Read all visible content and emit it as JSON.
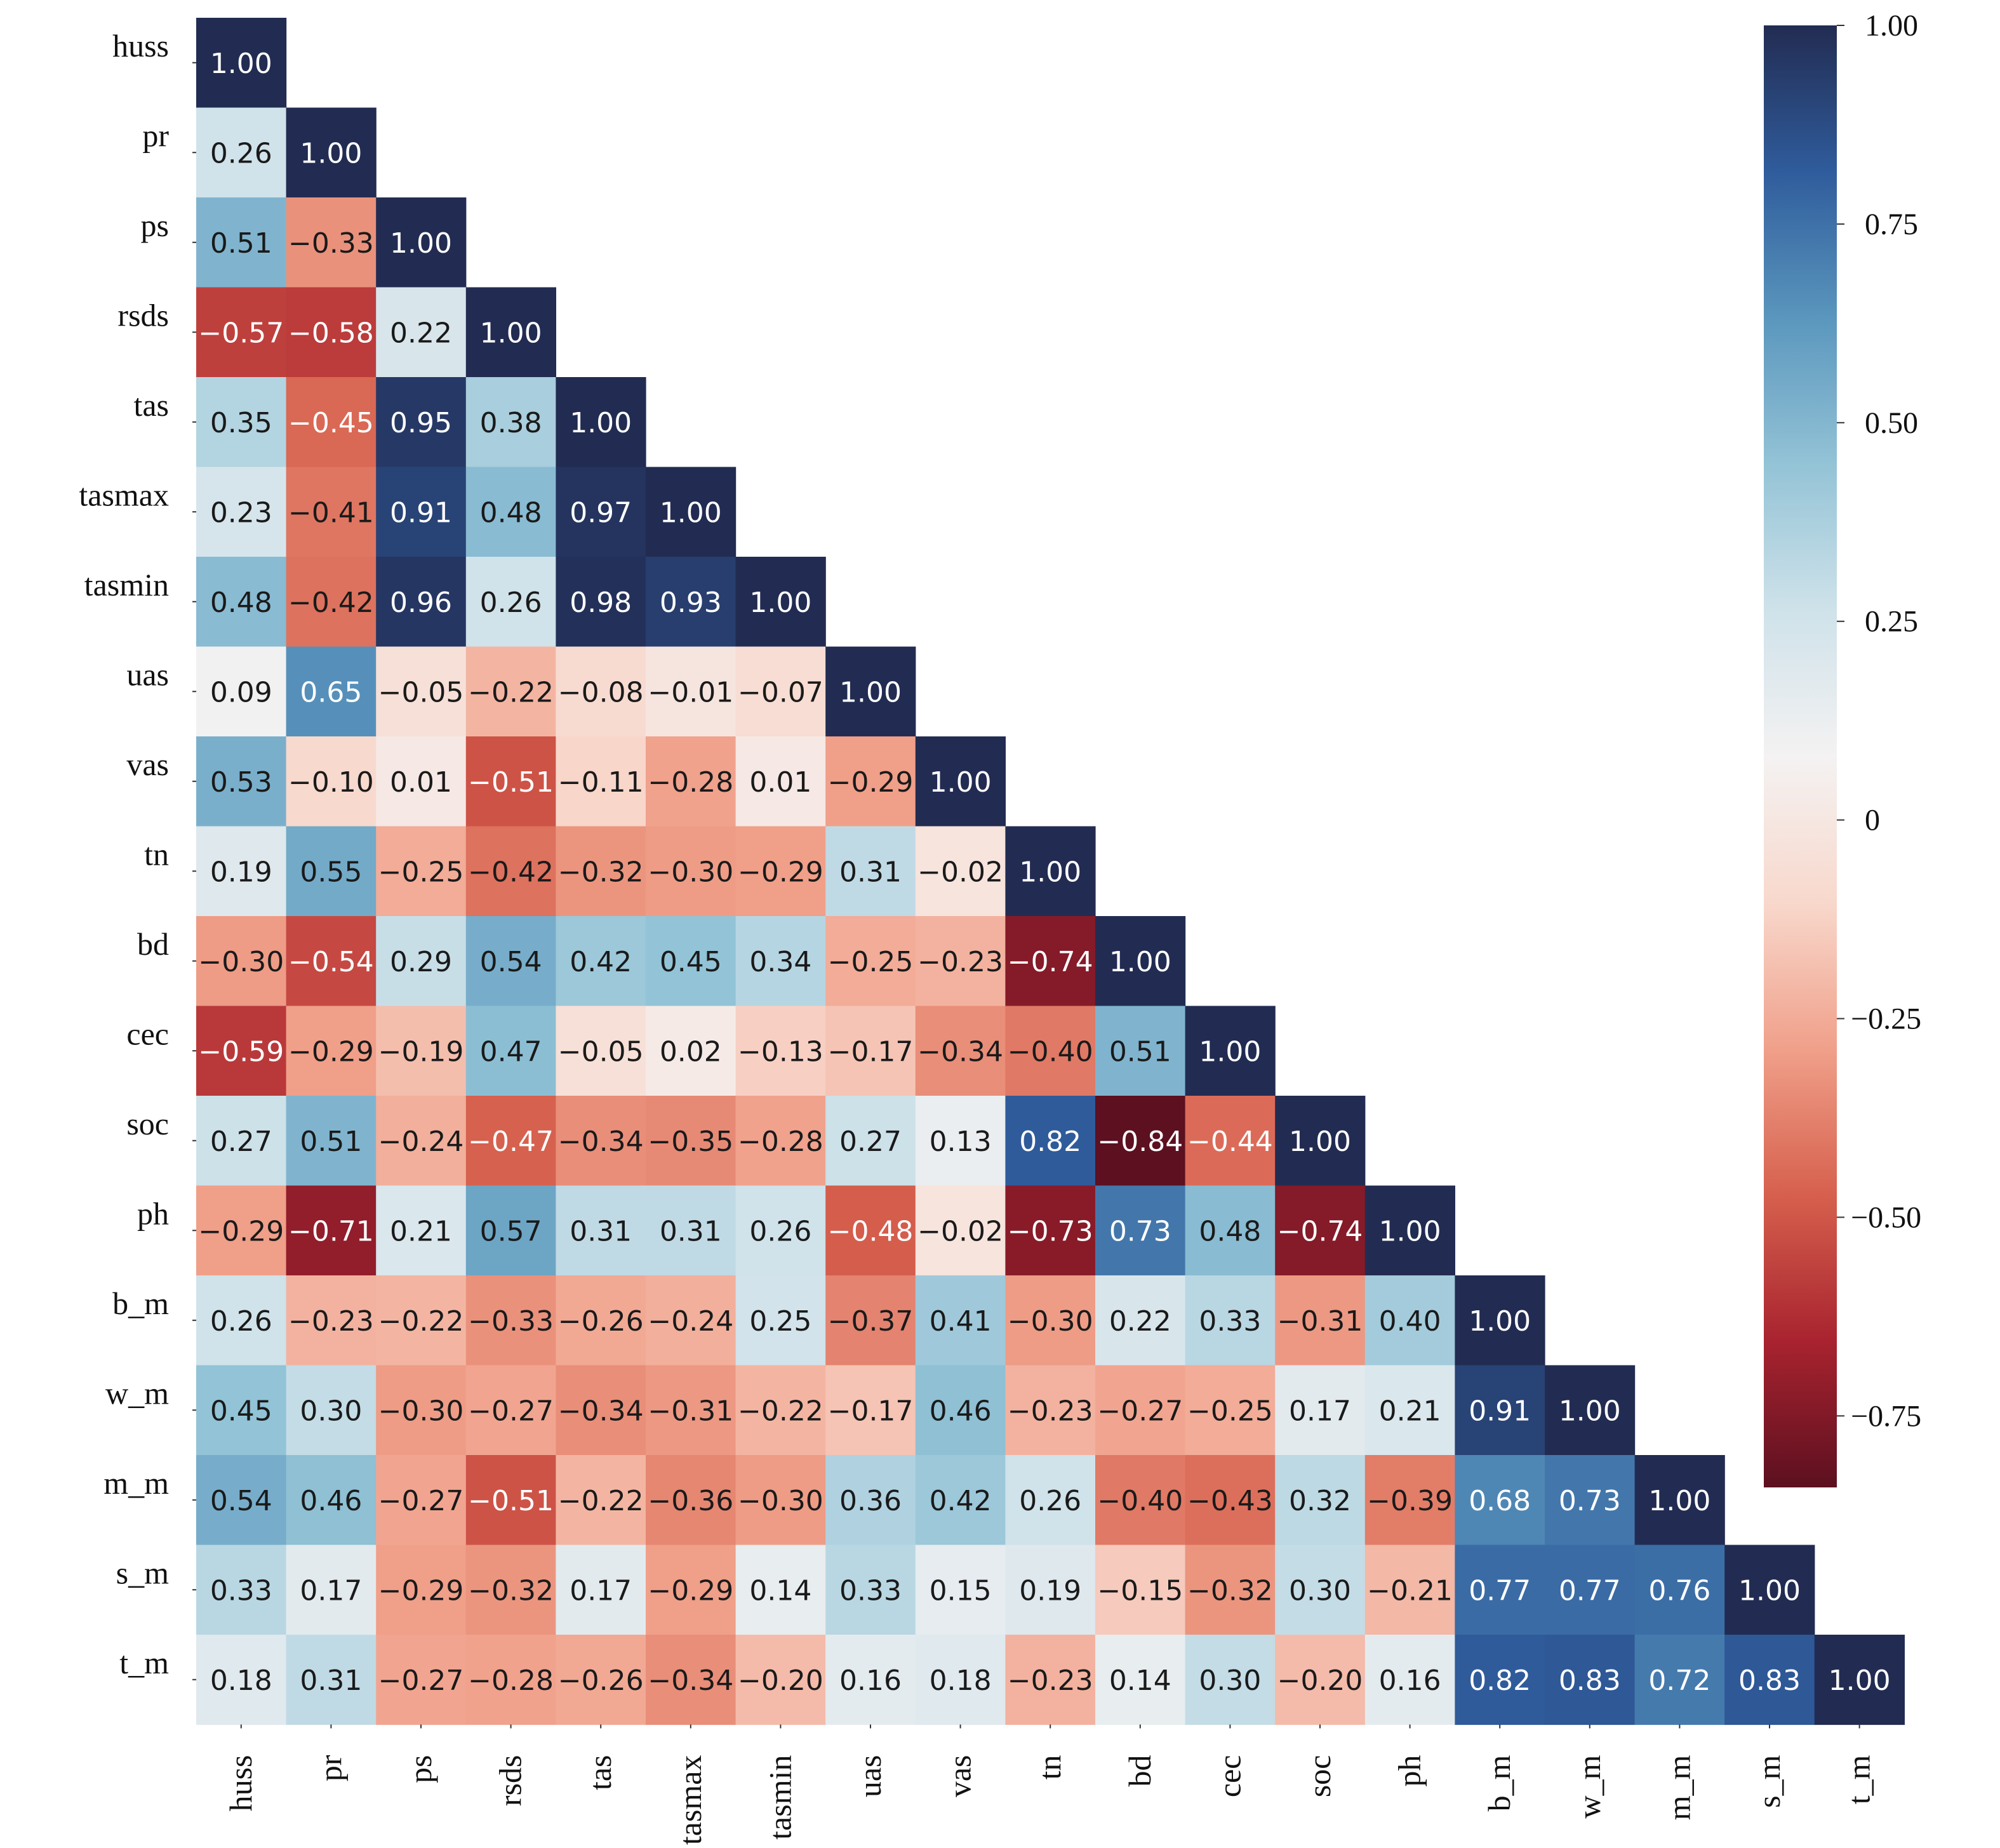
{
  "chart_data": {
    "type": "heatmap",
    "title": "",
    "variables": [
      "huss",
      "pr",
      "ps",
      "rsds",
      "tas",
      "tasmax",
      "tasmin",
      "uas",
      "vas",
      "tn",
      "bd",
      "cec",
      "soc",
      "ph",
      "b_m",
      "w_m",
      "m_m",
      "s_m",
      "t_m"
    ],
    "matrix_lower_triangle": [
      [
        1.0
      ],
      [
        0.26,
        1.0
      ],
      [
        0.51,
        -0.33,
        1.0
      ],
      [
        -0.57,
        -0.58,
        0.22,
        1.0
      ],
      [
        0.35,
        -0.45,
        0.95,
        0.38,
        1.0
      ],
      [
        0.23,
        -0.41,
        0.91,
        0.48,
        0.97,
        1.0
      ],
      [
        0.48,
        -0.42,
        0.96,
        0.26,
        0.98,
        0.93,
        1.0
      ],
      [
        0.09,
        0.65,
        -0.05,
        -0.22,
        -0.08,
        -0.01,
        -0.07,
        1.0
      ],
      [
        0.53,
        -0.1,
        0.01,
        -0.51,
        -0.11,
        -0.28,
        0.01,
        -0.29,
        1.0
      ],
      [
        0.19,
        0.55,
        -0.25,
        -0.42,
        -0.32,
        -0.3,
        -0.29,
        0.31,
        -0.02,
        1.0
      ],
      [
        -0.3,
        -0.54,
        0.29,
        0.54,
        0.42,
        0.45,
        0.34,
        -0.25,
        -0.23,
        -0.74,
        1.0
      ],
      [
        -0.59,
        -0.29,
        -0.19,
        0.47,
        -0.05,
        0.02,
        -0.13,
        -0.17,
        -0.34,
        -0.4,
        0.51,
        1.0
      ],
      [
        0.27,
        0.51,
        -0.24,
        -0.47,
        -0.34,
        -0.35,
        -0.28,
        0.27,
        0.13,
        0.82,
        -0.84,
        -0.44,
        1.0
      ],
      [
        -0.29,
        -0.71,
        0.21,
        0.57,
        0.31,
        0.31,
        0.26,
        -0.48,
        -0.02,
        -0.73,
        0.73,
        0.48,
        -0.74,
        1.0
      ],
      [
        0.26,
        -0.23,
        -0.22,
        -0.33,
        -0.26,
        -0.24,
        0.25,
        -0.37,
        0.41,
        -0.3,
        0.22,
        0.33,
        -0.31,
        0.4,
        1.0
      ],
      [
        0.45,
        0.3,
        -0.3,
        -0.27,
        -0.34,
        -0.31,
        -0.22,
        -0.17,
        0.46,
        -0.23,
        -0.27,
        -0.25,
        0.17,
        0.21,
        0.91,
        1.0
      ],
      [
        0.54,
        0.46,
        -0.27,
        -0.51,
        -0.22,
        -0.36,
        -0.3,
        0.36,
        0.42,
        0.26,
        -0.4,
        -0.43,
        0.32,
        -0.39,
        0.68,
        0.73,
        1.0
      ],
      [
        0.33,
        0.17,
        -0.29,
        -0.32,
        0.17,
        -0.29,
        0.14,
        0.33,
        0.15,
        0.19,
        -0.15,
        -0.32,
        0.3,
        -0.21,
        0.77,
        0.77,
        0.76,
        1.0
      ],
      [
        0.18,
        0.31,
        -0.27,
        -0.28,
        -0.26,
        -0.34,
        -0.2,
        0.16,
        0.18,
        -0.23,
        0.14,
        0.3,
        -0.2,
        0.16,
        0.82,
        0.83,
        0.72,
        0.83,
        1.0
      ]
    ],
    "value_range": [
      -0.84,
      1.0
    ],
    "colormap": "RdBu",
    "colormap_stops": [
      "#5c1020",
      "#a8232f",
      "#d6604d",
      "#f0a08a",
      "#f8d8cc",
      "#f4f2f2",
      "#cfe2ea",
      "#93c3d6",
      "#5a96bd",
      "#2f5c9c",
      "#222c52"
    ],
    "colorbar": {
      "ticks": [
        1.0,
        0.75,
        0.5,
        0.25,
        0,
        -0.25,
        -0.5,
        -0.75
      ],
      "tick_labels": [
        "1.00",
        "0.75",
        "0.50",
        "0.25",
        "0",
        "−0.25",
        "−0.50",
        "−0.75"
      ],
      "placement": "right"
    },
    "xlabel": "",
    "ylabel": "",
    "annotations": "values shown in each cell, 2 decimals"
  }
}
